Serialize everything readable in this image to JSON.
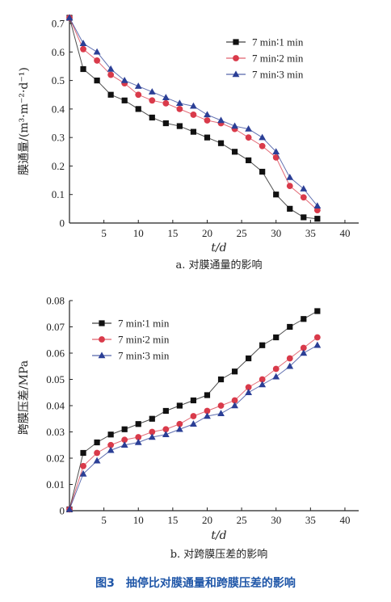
{
  "figure_caption": "图3　抽停比对膜通量和跨膜压差的影响",
  "colors": {
    "series1": "#111111",
    "series2": "#d93a4a",
    "series3": "#2b3f96",
    "caption": "#1f56a8",
    "axis": "#222222"
  },
  "chart_data": [
    {
      "type": "line",
      "subcaption": "a. 对膜通量的影响",
      "ylabel": "膜通量/(m³·m⁻²·d⁻¹)",
      "xlabel": "t/d",
      "xlim": [
        0,
        42
      ],
      "ylim": [
        0,
        0.72
      ],
      "xticks": [
        5,
        10,
        15,
        20,
        25,
        30,
        35,
        40
      ],
      "yticks": [
        0,
        0.1,
        0.2,
        0.3,
        0.4,
        0.5,
        0.6,
        0.7
      ],
      "ytick_labels": [
        "0",
        "0.1",
        "0.2",
        "0.3",
        "0.4",
        "0.5",
        "0.6",
        "0.7"
      ],
      "legend_position": "top-right",
      "series": [
        {
          "name": "7 min∶1 min",
          "marker": "square",
          "x": [
            0,
            2,
            4,
            6,
            8,
            10,
            12,
            14,
            16,
            18,
            20,
            22,
            24,
            26,
            28,
            30,
            32,
            34,
            36
          ],
          "y": [
            0.72,
            0.54,
            0.5,
            0.45,
            0.43,
            0.4,
            0.37,
            0.35,
            0.34,
            0.32,
            0.3,
            0.28,
            0.25,
            0.22,
            0.18,
            0.1,
            0.05,
            0.02,
            0.015
          ]
        },
        {
          "name": "7 min∶2 min",
          "marker": "circle",
          "x": [
            0,
            2,
            4,
            6,
            8,
            10,
            12,
            14,
            16,
            18,
            20,
            22,
            24,
            26,
            28,
            30,
            32,
            34,
            36
          ],
          "y": [
            0.72,
            0.61,
            0.57,
            0.52,
            0.49,
            0.45,
            0.43,
            0.42,
            0.4,
            0.38,
            0.36,
            0.35,
            0.33,
            0.3,
            0.27,
            0.23,
            0.13,
            0.09,
            0.045
          ]
        },
        {
          "name": "7 min∶3 min",
          "marker": "triangle",
          "x": [
            0,
            2,
            4,
            6,
            8,
            10,
            12,
            14,
            16,
            18,
            20,
            22,
            24,
            26,
            28,
            30,
            32,
            34,
            36
          ],
          "y": [
            0.72,
            0.63,
            0.6,
            0.54,
            0.5,
            0.48,
            0.46,
            0.44,
            0.42,
            0.41,
            0.38,
            0.36,
            0.34,
            0.33,
            0.3,
            0.25,
            0.16,
            0.12,
            0.06
          ]
        }
      ]
    },
    {
      "type": "line",
      "subcaption": "b. 对跨膜压差的影响",
      "ylabel": "跨膜压差/MPa",
      "xlabel": "t/d",
      "xlim": [
        0,
        42
      ],
      "ylim": [
        0,
        0.08
      ],
      "xticks": [
        5,
        10,
        15,
        20,
        25,
        30,
        35,
        40
      ],
      "yticks": [
        0,
        0.01,
        0.02,
        0.03,
        0.04,
        0.05,
        0.06,
        0.07,
        0.08
      ],
      "ytick_labels": [
        "0",
        "0.01",
        "0.02",
        "0.03",
        "0.04",
        "0.05",
        "0.06",
        "0.07",
        "0.08"
      ],
      "legend_position": "top-left",
      "series": [
        {
          "name": "7 min∶1 min",
          "marker": "square",
          "x": [
            0,
            2,
            4,
            6,
            8,
            10,
            12,
            14,
            16,
            18,
            20,
            22,
            24,
            26,
            28,
            30,
            32,
            34,
            36
          ],
          "y": [
            0.0005,
            0.022,
            0.026,
            0.029,
            0.031,
            0.033,
            0.035,
            0.038,
            0.04,
            0.042,
            0.044,
            0.05,
            0.053,
            0.058,
            0.063,
            0.066,
            0.07,
            0.073,
            0.076
          ]
        },
        {
          "name": "7 min∶2 min",
          "marker": "circle",
          "x": [
            0,
            2,
            4,
            6,
            8,
            10,
            12,
            14,
            16,
            18,
            20,
            22,
            24,
            26,
            28,
            30,
            32,
            34,
            36
          ],
          "y": [
            0.0005,
            0.017,
            0.022,
            0.025,
            0.027,
            0.028,
            0.03,
            0.031,
            0.033,
            0.036,
            0.038,
            0.04,
            0.042,
            0.047,
            0.05,
            0.054,
            0.058,
            0.062,
            0.066
          ]
        },
        {
          "name": "7 min∶3 min",
          "marker": "triangle",
          "x": [
            0,
            2,
            4,
            6,
            8,
            10,
            12,
            14,
            16,
            18,
            20,
            22,
            24,
            26,
            28,
            30,
            32,
            34,
            36
          ],
          "y": [
            0.0005,
            0.014,
            0.019,
            0.023,
            0.025,
            0.026,
            0.028,
            0.029,
            0.031,
            0.033,
            0.036,
            0.037,
            0.04,
            0.045,
            0.048,
            0.051,
            0.055,
            0.06,
            0.063
          ]
        }
      ]
    }
  ]
}
